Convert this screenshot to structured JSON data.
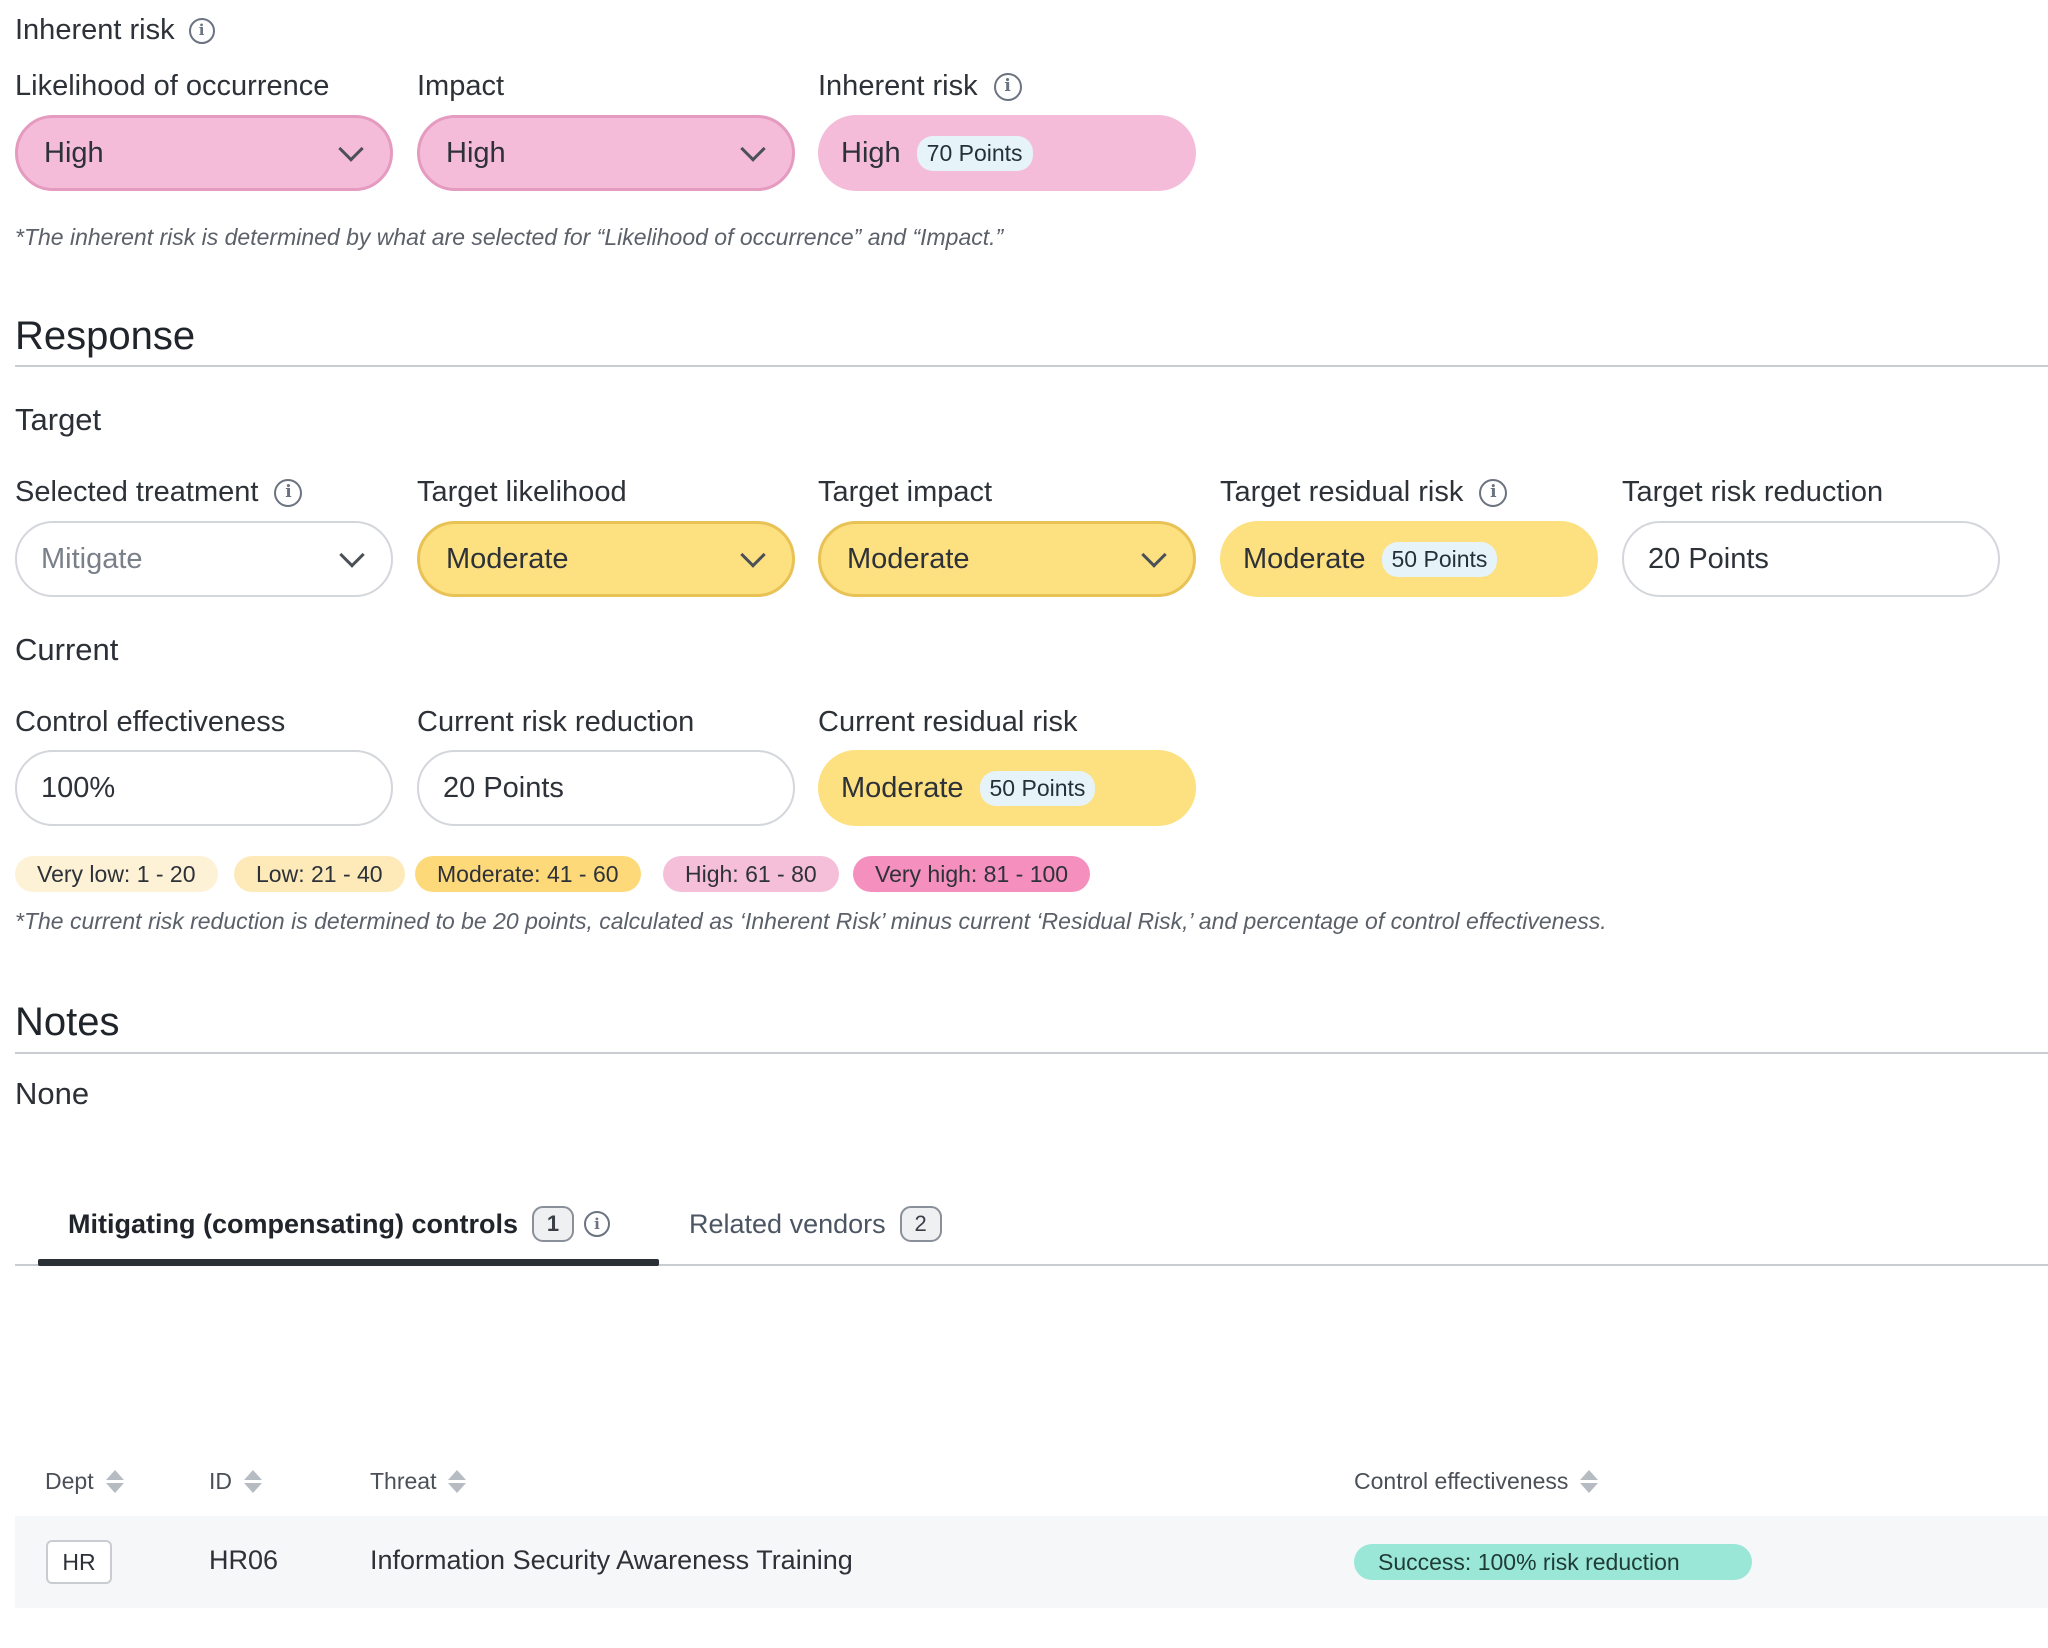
{
  "inherent": {
    "section_title": "Inherent risk",
    "likelihood": {
      "label": "Likelihood of occurrence",
      "value": "High"
    },
    "impact": {
      "label": "Impact",
      "value": "High"
    },
    "risk": {
      "label": "Inherent risk",
      "value": "High",
      "points": "70 Points"
    },
    "note": "*The inherent risk is determined by what are selected for “Likelihood of occurrence” and “Impact.”"
  },
  "response": {
    "title": "Response",
    "target": {
      "title": "Target",
      "treatment": {
        "label": "Selected treatment",
        "value": "Mitigate"
      },
      "likelihood": {
        "label": "Target likelihood",
        "value": "Moderate"
      },
      "impact": {
        "label": "Target impact",
        "value": "Moderate"
      },
      "residual": {
        "label": "Target residual risk",
        "value": "Moderate",
        "points": "50 Points"
      },
      "reduction": {
        "label": "Target risk reduction",
        "value": "20 Points"
      }
    },
    "current": {
      "title": "Current",
      "effectiveness": {
        "label": "Control effectiveness",
        "value": "100%"
      },
      "reduction": {
        "label": "Current risk reduction",
        "value": "20 Points"
      },
      "residual": {
        "label": "Current residual risk",
        "value": "Moderate",
        "points": "50 Points"
      }
    },
    "legend": [
      {
        "text": "Very low: 1 - 20",
        "color": "#fdf1d6"
      },
      {
        "text": "Low: 21 - 40",
        "color": "#fdeab8"
      },
      {
        "text": "Moderate: 41 - 60",
        "color": "#fdd97a"
      },
      {
        "text": "High: 61 - 80",
        "color": "#f6bfd9"
      },
      {
        "text": "Very high: 81 - 100",
        "color": "#f48fbe"
      }
    ],
    "note": "*The current risk reduction is determined to be 20 points, calculated as ‘Inherent Risk’ minus current ‘Residual Risk,’ and percentage of control effectiveness."
  },
  "notes": {
    "title": "Notes",
    "value": "None"
  },
  "tabs": [
    {
      "label": "Mitigating (compensating) controls",
      "count": "1",
      "active": true
    },
    {
      "label": "Related vendors",
      "count": "2",
      "active": false
    }
  ],
  "table": {
    "columns": [
      "Dept",
      "ID",
      "Threat",
      "Control effectiveness"
    ],
    "rows": [
      {
        "dept": "HR",
        "id": "HR06",
        "threat": "Information Security Awareness Training",
        "effectiveness": "Success: 100% risk reduction"
      }
    ]
  },
  "colors": {
    "high": "#f5bcd9",
    "moderate": "#fde080",
    "success": "#9ae7d8",
    "tab_active_underline": "#2b2f36"
  }
}
